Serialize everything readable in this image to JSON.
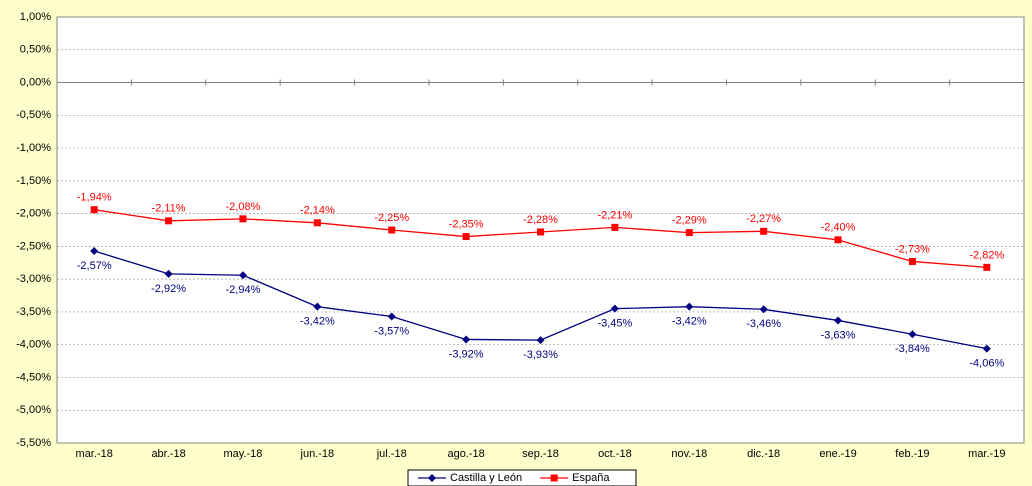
{
  "chart_data": {
    "type": "line",
    "categories": [
      "mar.-18",
      "abr.-18",
      "may.-18",
      "jun.-18",
      "jul.-18",
      "ago.-18",
      "sep.-18",
      "oct.-18",
      "nov.-18",
      "dic.-18",
      "ene.-19",
      "feb.-19",
      "mar.-19"
    ],
    "series": [
      {
        "name": "Castilla y León",
        "color": "#000080",
        "marker": "diamond",
        "values": [
          -2.57,
          -2.92,
          -2.94,
          -3.42,
          -3.57,
          -3.92,
          -3.93,
          -3.45,
          -3.42,
          -3.46,
          -3.63,
          -3.84,
          -4.06
        ],
        "value_labels": [
          "-2,57%",
          "-2,92%",
          "-2,94%",
          "-3,42%",
          "-3,57%",
          "-3,92%",
          "-3,93%",
          "-3,45%",
          "-3,42%",
          "-3,46%",
          "-3,63%",
          "-3,84%",
          "-4,06%"
        ]
      },
      {
        "name": "España",
        "color": "#ff0000",
        "marker": "square",
        "values": [
          -1.94,
          -2.11,
          -2.08,
          -2.14,
          -2.25,
          -2.35,
          -2.28,
          -2.21,
          -2.29,
          -2.27,
          -2.4,
          -2.73,
          -2.82
        ],
        "value_labels": [
          "-1,94%",
          "-2,11%",
          "-2,08%",
          "-2,14%",
          "-2,25%",
          "-2,35%",
          "-2,28%",
          "-2,21%",
          "-2,29%",
          "-2,27%",
          "-2,40%",
          "-2,73%",
          "-2,82%"
        ]
      }
    ],
    "ylim": [
      -5.5,
      1
    ],
    "yticks": [
      {
        "value": 1,
        "label": "1,00%"
      },
      {
        "value": 0.5,
        "label": "0,50%"
      },
      {
        "value": 0,
        "label": "0,00%"
      },
      {
        "value": -0.5,
        "label": "-0,50%"
      },
      {
        "value": -1,
        "label": "-1,00%"
      },
      {
        "value": -1.5,
        "label": "-1,50%"
      },
      {
        "value": -2,
        "label": "-2,00%"
      },
      {
        "value": -2.5,
        "label": "-2,50%"
      },
      {
        "value": -3,
        "label": "-3,00%"
      },
      {
        "value": -3.5,
        "label": "-3,50%"
      },
      {
        "value": -4,
        "label": "-4,00%"
      },
      {
        "value": -4.5,
        "label": "-4,50%"
      },
      {
        "value": -5,
        "label": "-5,00%"
      },
      {
        "value": -5.5,
        "label": "-5,50%"
      }
    ],
    "grid": true,
    "legend": "bottom"
  }
}
